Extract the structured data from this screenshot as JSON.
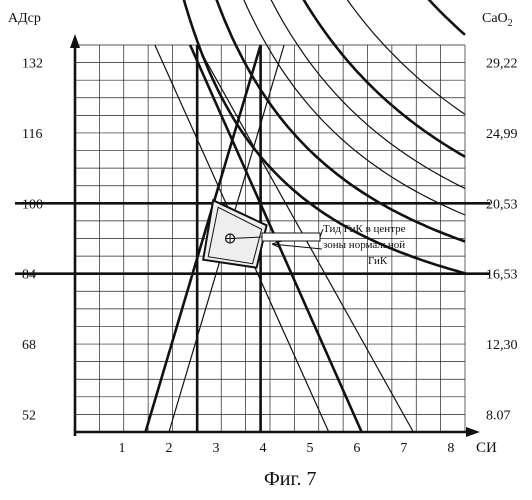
{
  "chart_data": {
    "type": "line",
    "xlabel": "СИ",
    "ylabel_left": "АДср",
    "ylabel_right": "CaO",
    "ylabel_right_subscript": "2",
    "x_ticks": [
      1,
      2,
      3,
      4,
      5,
      6,
      7,
      8
    ],
    "y_ticks_left": [
      52,
      68,
      84,
      100,
      116,
      132
    ],
    "y_ticks_right": [
      "8.07",
      "12,30",
      "16,53",
      "20,53",
      "24,99",
      "29,22"
    ],
    "xlim": [
      0,
      8.3
    ],
    "ylim": [
      48,
      136
    ],
    "grid": true,
    "normal_zone": {
      "si_range": [
        2.6,
        3.95
      ],
      "ad_range": [
        84,
        100
      ],
      "center": {
        "si": 3.3,
        "ad": 92
      }
    },
    "annotation": [
      "Тид ГиК в центре",
      "зоны нормальной",
      "ГиК"
    ],
    "caption": "Фиг. 7",
    "series": [
      {
        "kind": "hyperbola",
        "k": 200,
        "width": 2.6,
        "x_range": [
          1.5,
          8.3
        ]
      },
      {
        "kind": "hyperbola",
        "k": 260,
        "width": 2.6,
        "x_range": [
          1.9,
          8.3
        ]
      },
      {
        "kind": "hyperbola",
        "k": 310,
        "width": 1.2,
        "x_range": [
          2.3,
          8.3
        ]
      },
      {
        "kind": "hyperbola",
        "k": 360,
        "width": 1.2,
        "x_range": [
          2.6,
          8.3
        ]
      },
      {
        "kind": "hyperbola",
        "k": 420,
        "width": 2.6,
        "x_range": [
          3.1,
          8.3
        ]
      },
      {
        "kind": "hyperbola",
        "k": 500,
        "width": 1.2,
        "x_range": [
          3.7,
          8.3
        ]
      },
      {
        "kind": "hyperbola",
        "k": 650,
        "width": 2.6,
        "x_range": [
          4.8,
          8.3
        ]
      },
      {
        "kind": "line",
        "points": [
          [
            1.5,
            48
          ],
          [
            3.95,
            136
          ]
        ],
        "width": 2.6
      },
      {
        "kind": "line",
        "points": [
          [
            2.0,
            48
          ],
          [
            4.45,
            136
          ]
        ],
        "width": 1.2
      },
      {
        "kind": "line",
        "points": [
          [
            1.7,
            136
          ],
          [
            5.4,
            48
          ]
        ],
        "width": 1.2
      },
      {
        "kind": "line",
        "points": [
          [
            2.45,
            136
          ],
          [
            6.1,
            48
          ]
        ],
        "width": 2.6
      },
      {
        "kind": "line",
        "points": [
          [
            2.6,
            136
          ],
          [
            7.2,
            48
          ]
        ],
        "width": 1.2
      }
    ],
    "bold_vertical": [
      2.6,
      3.95
    ],
    "bold_horizontal": [
      84,
      100
    ]
  }
}
